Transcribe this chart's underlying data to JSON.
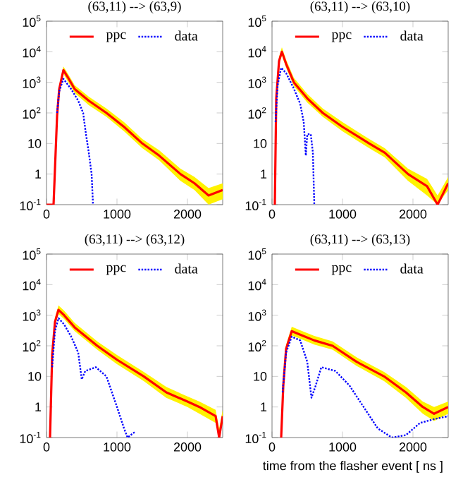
{
  "chart_data": [
    {
      "type": "line",
      "title": "(63,11) --> (63,9)",
      "xlim": [
        0,
        2500
      ],
      "ylim": [
        0.1,
        100000
      ],
      "log": "y",
      "legend": "top",
      "xticks": [
        0,
        1000,
        2000
      ],
      "yticks": [
        {
          "value": 0.1,
          "label": "10$^{-1}$"
        },
        1,
        10,
        {
          "value": 100,
          "label": "10$^{2}$"
        },
        {
          "value": 1000,
          "label": "10$^{3}$"
        },
        {
          "value": 10000,
          "label": "10$^{4}$"
        },
        {
          "value": 100000,
          "label": "10$^{5}$"
        }
      ],
      "series": [
        {
          "name": "ppc",
          "color": "#ff0000",
          "line_style": "solid",
          "x": [
            0,
            100,
            150,
            180,
            240,
            300,
            400,
            600,
            850,
            1100,
            1360,
            1600,
            1900,
            2100,
            2300,
            2500
          ],
          "values": [
            0.1,
            0.1,
            80,
            600,
            2500,
            1500,
            600,
            250,
            100,
            35,
            10,
            4,
            1,
            0.5,
            0.2,
            0.3
          ],
          "upper": [
            0.1,
            0.1,
            110,
            800,
            3300,
            2000,
            800,
            340,
            140,
            50,
            14,
            6,
            1.5,
            0.8,
            0.35,
            0.5
          ],
          "lower": [
            0.1,
            0.1,
            60,
            450,
            1900,
            1100,
            450,
            180,
            75,
            25,
            7,
            2.8,
            0.6,
            0.3,
            0.1,
            0.15
          ]
        },
        {
          "name": "data",
          "color": "#0000ff",
          "line_style": "dotted",
          "x": [
            150,
            180,
            240,
            350,
            450,
            520,
            560,
            600,
            640,
            660
          ],
          "values": [
            100,
            500,
            1300,
            600,
            250,
            100,
            20,
            5,
            1,
            0.1
          ]
        }
      ]
    },
    {
      "type": "line",
      "title": "(63,11) --> (63,10)",
      "xlim": [
        0,
        2500
      ],
      "ylim": [
        0.1,
        100000
      ],
      "log": "y",
      "legend": "top",
      "xticks": [
        0,
        1000,
        2000
      ],
      "yticks": [
        {
          "value": 0.1,
          "label": "10$^{-1}$"
        },
        1,
        10,
        {
          "value": 100,
          "label": "10$^{2}$"
        },
        {
          "value": 1000,
          "label": "10$^{3}$"
        },
        {
          "value": 10000,
          "label": "10$^{4}$"
        },
        {
          "value": 100000,
          "label": "10$^{5}$"
        }
      ],
      "series": [
        {
          "name": "ppc",
          "color": "#ff0000",
          "line_style": "solid",
          "x": [
            40,
            60,
            100,
            140,
            200,
            310,
            500,
            720,
            1000,
            1380,
            1600,
            1930,
            2200,
            2350,
            2500
          ],
          "values": [
            0.1,
            300,
            5000,
            10000,
            4000,
            1000,
            300,
            100,
            35,
            10,
            5,
            1,
            0.4,
            0.1,
            0.5
          ],
          "upper": [
            0.1,
            420,
            6800,
            14000,
            5500,
            1400,
            420,
            140,
            50,
            14,
            7,
            1.5,
            0.7,
            0.2,
            0.8
          ],
          "lower": [
            0.1,
            220,
            3700,
            7500,
            3000,
            750,
            220,
            75,
            25,
            7,
            3.5,
            0.6,
            0.2,
            0.1,
            0.3
          ]
        },
        {
          "name": "data",
          "color": "#0000ff",
          "line_style": "dotted",
          "x": [
            50,
            80,
            130,
            200,
            300,
            400,
            450,
            480,
            500,
            550,
            580,
            600
          ],
          "values": [
            50,
            800,
            3000,
            2000,
            700,
            200,
            50,
            4,
            20,
            20,
            5,
            0.1
          ]
        }
      ]
    },
    {
      "type": "line",
      "title": "(63,11) --> (63,12)",
      "xlim": [
        0,
        2500
      ],
      "ylim": [
        0.1,
        100000
      ],
      "log": "y",
      "legend": "top",
      "xticks": [
        0,
        1000,
        2000
      ],
      "yticks": [
        {
          "value": 0.1,
          "label": "10$^{-1}$"
        },
        1,
        10,
        {
          "value": 100,
          "label": "10$^{2}$"
        },
        {
          "value": 1000,
          "label": "10$^{3}$"
        },
        {
          "value": 10000,
          "label": "10$^{4}$"
        },
        {
          "value": 100000,
          "label": "10$^{5}$"
        }
      ],
      "series": [
        {
          "name": "ppc",
          "color": "#ff0000",
          "line_style": "solid",
          "x": [
            50,
            80,
            120,
            170,
            250,
            400,
            720,
            1000,
            1380,
            1700,
            2000,
            2170,
            2400,
            2450,
            2500
          ],
          "values": [
            0.1,
            50,
            600,
            1500,
            1000,
            400,
            100,
            35,
            10,
            3,
            1.5,
            1,
            0.5,
            0.1,
            0.5
          ],
          "upper": [
            0.1,
            70,
            850,
            2100,
            1400,
            560,
            140,
            50,
            14,
            4.5,
            2.2,
            1.5,
            0.8,
            0.2,
            0.8
          ],
          "lower": [
            0.1,
            35,
            450,
            1100,
            750,
            300,
            75,
            25,
            7,
            2,
            1,
            0.6,
            0.3,
            0.1,
            0.3
          ]
        },
        {
          "name": "data",
          "color": "#0000ff",
          "line_style": "dotted",
          "x": [
            80,
            120,
            170,
            250,
            350,
            450,
            500,
            550,
            700,
            850,
            1000,
            1100,
            1150,
            1250
          ],
          "values": [
            20,
            300,
            800,
            500,
            200,
            60,
            8,
            15,
            20,
            10,
            1,
            0.2,
            0.1,
            0.15
          ]
        }
      ]
    },
    {
      "type": "line",
      "title": "(63,11) --> (63,13)",
      "xlabel": "time from the flasher event [ ns ]",
      "xlim": [
        0,
        2500
      ],
      "ylim": [
        0.1,
        100000
      ],
      "log": "y",
      "legend": "top",
      "xticks": [
        0,
        1000,
        2000
      ],
      "yticks": [
        {
          "value": 0.1,
          "label": "10$^{-1}$"
        },
        1,
        10,
        {
          "value": 100,
          "label": "10$^{2}$"
        },
        {
          "value": 1000,
          "label": "10$^{3}$"
        },
        {
          "value": 10000,
          "label": "10$^{4}$"
        },
        {
          "value": 100000,
          "label": "10$^{5}$"
        }
      ],
      "series": [
        {
          "name": "ppc",
          "color": "#ff0000",
          "line_style": "solid",
          "x": [
            130,
            160,
            200,
            280,
            400,
            600,
            860,
            1200,
            1590,
            1900,
            2140,
            2300,
            2500
          ],
          "values": [
            0.1,
            5,
            80,
            300,
            230,
            150,
            100,
            30,
            10,
            3,
            1,
            0.6,
            1
          ],
          "upper": [
            0.1,
            7,
            110,
            420,
            320,
            210,
            140,
            42,
            14,
            4.5,
            1.5,
            1,
            1.5
          ],
          "lower": [
            0.1,
            3.5,
            60,
            220,
            170,
            110,
            75,
            22,
            7,
            2,
            0.6,
            0.35,
            0.6
          ]
        },
        {
          "name": "data",
          "color": "#0000ff",
          "line_style": "dotted",
          "x": [
            150,
            200,
            280,
            400,
            500,
            560,
            620,
            700,
            900,
            1100,
            1300,
            1500,
            1700,
            1900,
            2100,
            2300,
            2500
          ],
          "values": [
            3,
            60,
            200,
            150,
            30,
            2,
            5,
            20,
            15,
            5,
            1,
            0.2,
            0.1,
            0.12,
            0.3,
            0.4,
            0.5
          ]
        }
      ]
    }
  ]
}
